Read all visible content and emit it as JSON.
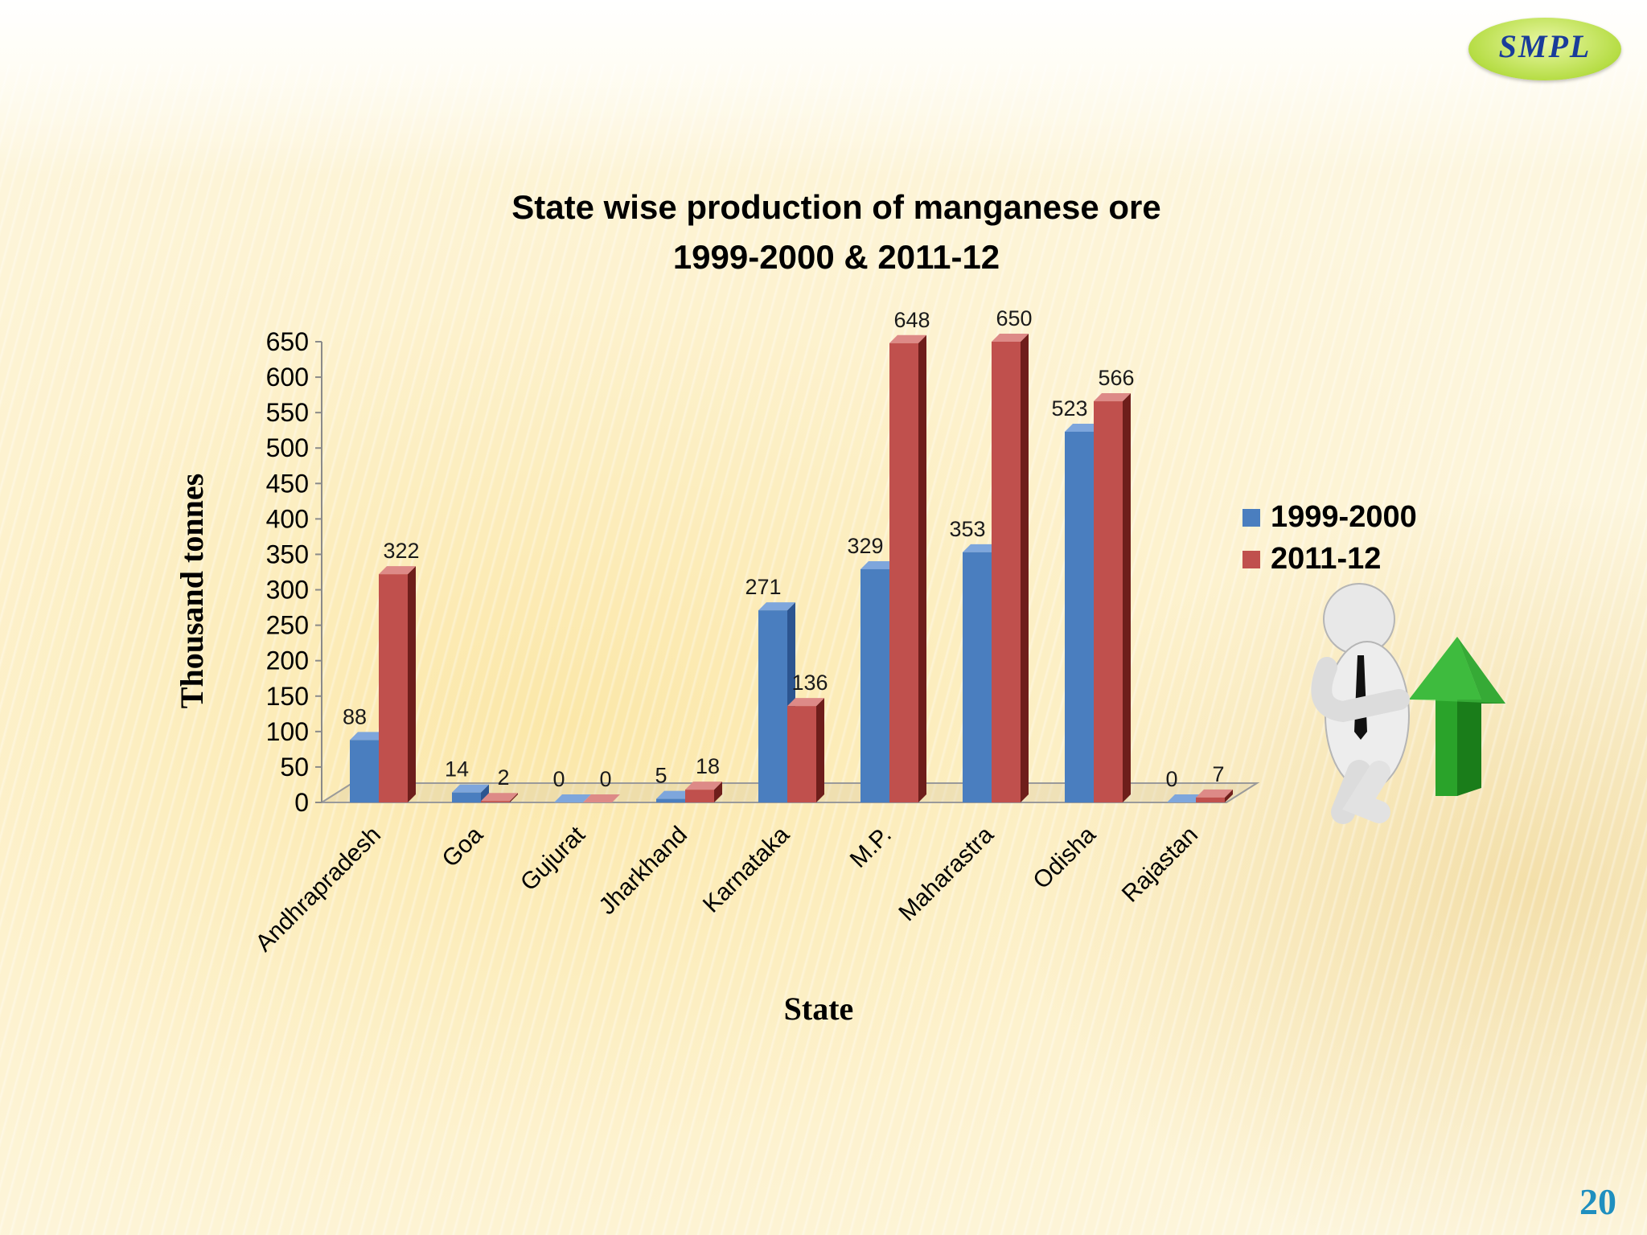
{
  "chart_data": {
    "type": "bar",
    "title": [
      "State wise production of manganese ore",
      "1999-2000 & 2011-12"
    ],
    "xlabel": "State",
    "ylabel": "Thousand tonnes",
    "ylim": [
      0,
      650
    ],
    "yticks": [
      "0",
      "50",
      "100",
      "150",
      "200",
      "250",
      "300",
      "350",
      "400",
      "450",
      "500",
      "550",
      "600",
      "650"
    ],
    "categories": [
      "Andhrapradesh",
      "Goa",
      "Gujurat",
      "Jharkhand",
      "Karnataka",
      "M.P.",
      "Maharastra",
      "Odisha",
      "Rajastan"
    ],
    "series": [
      {
        "name": "1999-2000",
        "color": "#4a7ebf",
        "side": "#2c5590",
        "top": "#7ea6dc",
        "values": [
          88,
          14,
          0,
          5,
          271,
          329,
          353,
          523,
          0
        ]
      },
      {
        "name": "2011-12",
        "color": "#c0504d",
        "side": "#6e1e1b",
        "top": "#dd8a87",
        "values": [
          322,
          2,
          0,
          18,
          136,
          648,
          650,
          566,
          7
        ]
      }
    ],
    "legend": "right"
  },
  "logo": {
    "text": "SMPL"
  },
  "page_number": "20"
}
